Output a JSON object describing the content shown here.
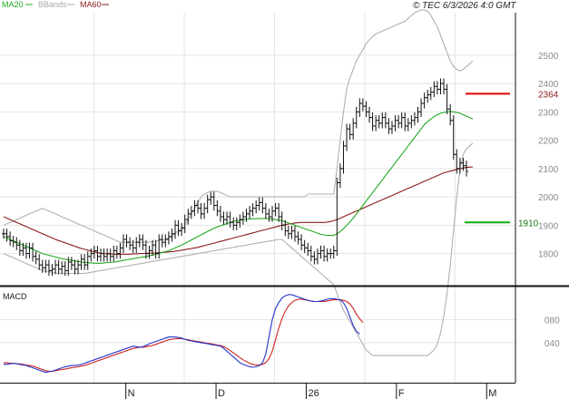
{
  "header": {
    "legend": [
      {
        "label": "MA20",
        "color": "#22aa22"
      },
      {
        "label": "BBands",
        "color": "#aaaaaa"
      },
      {
        "label": "MA60",
        "color": "#8b1a1a"
      }
    ],
    "timestamp": "© TEC 6/3/2026 4:0 GMT"
  },
  "chart_data": [
    {
      "type": "ohlc",
      "yticks": [
        1800,
        1900,
        2000,
        2100,
        2200,
        2300,
        2400,
        2500
      ],
      "ylim": [
        1690,
        2650
      ],
      "xlabels": [
        {
          "label": "N",
          "t": 73
        },
        {
          "label": "D",
          "t": 143
        },
        {
          "label": "26",
          "t": 213
        },
        {
          "label": "F",
          "t": 283
        },
        {
          "label": "M",
          "t": 353
        }
      ],
      "xlim": [
        0,
        400
      ],
      "levels": [
        {
          "value": 2364,
          "label": "2364",
          "color": "#dd0000"
        },
        {
          "value": 1910,
          "label": "1910",
          "color": "#11aa11"
        }
      ],
      "close": [
        1870,
        1860,
        1845,
        1840,
        1830,
        1810,
        1820,
        1800,
        1820,
        1790,
        1780,
        1760,
        1750,
        1760,
        1740,
        1745,
        1760,
        1745,
        1755,
        1740,
        1770,
        1760,
        1745,
        1760,
        1780,
        1760,
        1790,
        1800,
        1810,
        1790,
        1800,
        1790,
        1800,
        1790,
        1810,
        1800,
        1820,
        1850,
        1840,
        1830,
        1820,
        1840,
        1850,
        1830,
        1800,
        1810,
        1830,
        1800,
        1850,
        1840,
        1850,
        1860,
        1870,
        1900,
        1880,
        1890,
        1920,
        1940,
        1950,
        1970,
        1960,
        1940,
        1960,
        1990,
        2000,
        1970,
        1950,
        1930,
        1920,
        1930,
        1910,
        1900,
        1910,
        1920,
        1930,
        1940,
        1950,
        1960,
        1970,
        1980,
        1960,
        1940,
        1930,
        1950,
        1960,
        1930,
        1900,
        1880,
        1870,
        1880,
        1860,
        1850,
        1830,
        1820,
        1810,
        1790,
        1780,
        1800,
        1810,
        1790,
        1800,
        1800,
        1810,
        2050,
        2100,
        2180,
        2240,
        2220,
        2260,
        2300,
        2330,
        2320,
        2300,
        2280,
        2250,
        2270,
        2260,
        2280,
        2260,
        2240,
        2250,
        2270,
        2260,
        2280,
        2250,
        2260,
        2270,
        2280,
        2300,
        2330,
        2350,
        2360,
        2370,
        2390,
        2380,
        2400,
        2380,
        2310,
        2270,
        2150,
        2100,
        2120,
        2110,
        2090
      ],
      "ma20": [
        1860,
        1855,
        1850,
        1845,
        1840,
        1835,
        1830,
        1825,
        1820,
        1815,
        1810,
        1805,
        1800,
        1797,
        1794,
        1791,
        1788,
        1785,
        1782,
        1780,
        1778,
        1776,
        1774,
        1772,
        1770,
        1769,
        1768,
        1767,
        1766,
        1766,
        1766,
        1767,
        1768,
        1769,
        1770,
        1772,
        1774,
        1776,
        1778,
        1780,
        1782,
        1784,
        1786,
        1788,
        1790,
        1792,
        1795,
        1798,
        1801,
        1804,
        1807,
        1810,
        1815,
        1820,
        1825,
        1830,
        1836,
        1842,
        1848,
        1854,
        1860,
        1866,
        1872,
        1878,
        1884,
        1890,
        1894,
        1898,
        1902,
        1906,
        1910,
        1913,
        1916,
        1918,
        1920,
        1921,
        1922,
        1923,
        1923,
        1924,
        1924,
        1924,
        1923,
        1922,
        1920,
        1918,
        1916,
        1912,
        1908,
        1904,
        1900,
        1896,
        1892,
        1888,
        1884,
        1880,
        1876,
        1872,
        1868,
        1866,
        1864,
        1864,
        1864,
        1870,
        1878,
        1888,
        1900,
        1912,
        1925,
        1940,
        1955,
        1970,
        1985,
        2000,
        2015,
        2030,
        2045,
        2060,
        2075,
        2090,
        2105,
        2120,
        2135,
        2150,
        2165,
        2180,
        2195,
        2210,
        2225,
        2240,
        2255,
        2265,
        2275,
        2283,
        2290,
        2295,
        2298,
        2300,
        2302,
        2300,
        2298,
        2295,
        2290,
        2285,
        2280,
        2275
      ],
      "ma60": [
        1930,
        1925,
        1920,
        1915,
        1910,
        1905,
        1900,
        1895,
        1890,
        1885,
        1880,
        1875,
        1870,
        1865,
        1860,
        1855,
        1850,
        1846,
        1842,
        1838,
        1834,
        1830,
        1826,
        1822,
        1818,
        1815,
        1812,
        1809,
        1806,
        1803,
        1801,
        1800,
        1799,
        1799,
        1798,
        1798,
        1798,
        1798,
        1798,
        1798,
        1799,
        1799,
        1800,
        1800,
        1801,
        1801,
        1802,
        1802,
        1803,
        1804,
        1805,
        1806,
        1807,
        1808,
        1810,
        1812,
        1814,
        1816,
        1818,
        1820,
        1822,
        1825,
        1828,
        1831,
        1834,
        1837,
        1840,
        1843,
        1846,
        1849,
        1852,
        1855,
        1858,
        1861,
        1864,
        1867,
        1870,
        1873,
        1876,
        1879,
        1882,
        1885,
        1888,
        1891,
        1894,
        1897,
        1900,
        1902,
        1904,
        1906,
        1908,
        1909,
        1910,
        1910,
        1910,
        1910,
        1910,
        1910,
        1910,
        1910,
        1911,
        1913,
        1916,
        1920,
        1925,
        1930,
        1935,
        1940,
        1945,
        1950,
        1955,
        1960,
        1965,
        1970,
        1975,
        1980,
        1985,
        1990,
        1995,
        2000,
        2005,
        2010,
        2015,
        2020,
        2025,
        2030,
        2035,
        2040,
        2045,
        2050,
        2055,
        2060,
        2065,
        2070,
        2075,
        2080,
        2085,
        2088,
        2091,
        2094,
        2097,
        2100,
        2102,
        2104,
        2105,
        2106
      ],
      "bb_upper": [
        1900,
        1905,
        1910,
        1915,
        1920,
        1925,
        1930,
        1935,
        1940,
        1945,
        1950,
        1955,
        1960,
        1955,
        1950,
        1945,
        1940,
        1935,
        1930,
        1925,
        1920,
        1915,
        1910,
        1905,
        1900,
        1895,
        1890,
        1885,
        1880,
        1875,
        1870,
        1865,
        1860,
        1855,
        1850,
        1845,
        1840,
        1840,
        1840,
        1840,
        1840,
        1840,
        1840,
        1840,
        1840,
        1840,
        1842,
        1844,
        1846,
        1848,
        1850,
        1855,
        1860,
        1870,
        1880,
        1890,
        1900,
        1920,
        1940,
        1960,
        1980,
        2000,
        2010,
        2015,
        2020,
        2020,
        2020,
        2015,
        2010,
        2005,
        2000,
        2000,
        2000,
        2000,
        2000,
        2000,
        2000,
        2000,
        2000,
        2000,
        2000,
        2000,
        2000,
        2000,
        2000,
        2000,
        2000,
        2000,
        2000,
        2000,
        2000,
        2000,
        2000,
        2000,
        2010,
        2010,
        2010,
        2010,
        2010,
        2010,
        2010,
        2010,
        2010,
        2100,
        2200,
        2300,
        2380,
        2420,
        2450,
        2480,
        2500,
        2520,
        2540,
        2555,
        2565,
        2575,
        2580,
        2585,
        2590,
        2595,
        2600,
        2605,
        2610,
        2615,
        2620,
        2630,
        2640,
        2650,
        2655,
        2660,
        2660,
        2655,
        2640,
        2620,
        2600,
        2570,
        2540,
        2510,
        2480,
        2460,
        2450,
        2445,
        2450,
        2460,
        2470,
        2480
      ],
      "bb_lower": [
        1800,
        1795,
        1790,
        1785,
        1780,
        1775,
        1770,
        1765,
        1760,
        1755,
        1750,
        1745,
        1740,
        1738,
        1736,
        1734,
        1732,
        1730,
        1730,
        1730,
        1730,
        1730,
        1730,
        1730,
        1730,
        1730,
        1732,
        1734,
        1736,
        1738,
        1740,
        1742,
        1744,
        1746,
        1748,
        1750,
        1752,
        1754,
        1756,
        1758,
        1760,
        1762,
        1764,
        1766,
        1768,
        1770,
        1772,
        1774,
        1776,
        1778,
        1780,
        1782,
        1784,
        1786,
        1788,
        1790,
        1792,
        1794,
        1796,
        1798,
        1800,
        1802,
        1804,
        1806,
        1808,
        1810,
        1812,
        1814,
        1816,
        1818,
        1820,
        1822,
        1824,
        1826,
        1828,
        1830,
        1832,
        1834,
        1836,
        1838,
        1840,
        1842,
        1844,
        1846,
        1848,
        1850,
        1850,
        1840,
        1830,
        1820,
        1810,
        1800,
        1790,
        1780,
        1770,
        1760,
        1750,
        1740,
        1730,
        1720,
        1710,
        1700,
        1690,
        1660,
        1630,
        1600,
        1580,
        1560,
        1540,
        1520,
        1500,
        1480,
        1460,
        1450,
        1440,
        1440,
        1440,
        1440,
        1440,
        1440,
        1440,
        1440,
        1440,
        1440,
        1440,
        1440,
        1440,
        1440,
        1440,
        1440,
        1440,
        1440,
        1450,
        1460,
        1480,
        1520,
        1580,
        1660,
        1760,
        1880,
        2000,
        2100,
        2150,
        2170,
        2180,
        2190
      ]
    },
    {
      "type": "line",
      "title": "MACD",
      "yticks": [
        40,
        80
      ],
      "ylim": [
        -30,
        135
      ],
      "macd": [
        2,
        2,
        3,
        4,
        3,
        2,
        1,
        0,
        -2,
        -4,
        -6,
        -8,
        -10,
        -12,
        -11,
        -10,
        -8,
        -6,
        -4,
        -2,
        -1,
        0,
        0,
        1,
        2,
        4,
        6,
        8,
        10,
        12,
        14,
        16,
        18,
        20,
        22,
        24,
        26,
        28,
        30,
        32,
        34,
        33,
        32,
        33,
        35,
        38,
        40,
        42,
        44,
        46,
        48,
        50,
        50,
        50,
        49,
        48,
        46,
        44,
        43,
        42,
        41,
        40,
        39,
        38,
        37,
        36,
        35,
        34,
        30,
        25,
        20,
        15,
        10,
        5,
        2,
        0,
        -2,
        -3,
        -2,
        0,
        5,
        20,
        50,
        80,
        100,
        110,
        118,
        122,
        124,
        124,
        122,
        120,
        118,
        116,
        114,
        113,
        112,
        112,
        113,
        114,
        116,
        117,
        117,
        116,
        115,
        110,
        100,
        85,
        70,
        60,
        55
      ],
      "signal": [
        5,
        5,
        4,
        4,
        3,
        3,
        2,
        1,
        0,
        -1,
        -3,
        -5,
        -7,
        -9,
        -10,
        -10,
        -9,
        -8,
        -7,
        -6,
        -5,
        -4,
        -3,
        -2,
        -1,
        0,
        2,
        4,
        6,
        8,
        10,
        12,
        14,
        16,
        18,
        20,
        22,
        24,
        26,
        28,
        30,
        31,
        32,
        32,
        33,
        34,
        35,
        37,
        39,
        41,
        43,
        45,
        46,
        47,
        47,
        47,
        46,
        45,
        44,
        43,
        42,
        41,
        40,
        39,
        38,
        37,
        36,
        35,
        33,
        30,
        26,
        22,
        18,
        14,
        10,
        7,
        4,
        2,
        1,
        1,
        2,
        5,
        12,
        25,
        45,
        65,
        82,
        95,
        104,
        110,
        114,
        116,
        116,
        115,
        114,
        113,
        112,
        112,
        112,
        112,
        113,
        114,
        115,
        115,
        115,
        114,
        112,
        108,
        100,
        90,
        82,
        75
      ]
    }
  ]
}
